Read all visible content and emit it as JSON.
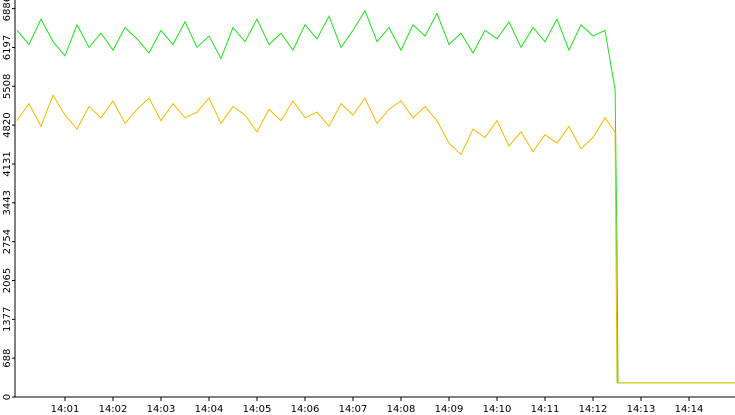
{
  "chart_data": {
    "type": "line",
    "x": [
      0,
      0.25,
      0.5,
      0.75,
      1,
      1.25,
      1.5,
      1.75,
      2,
      2.25,
      2.5,
      2.75,
      3,
      3.25,
      3.5,
      3.75,
      4,
      4.25,
      4.5,
      4.75,
      5,
      5.25,
      5.5,
      5.75,
      6,
      6.25,
      6.5,
      6.75,
      7,
      7.25,
      7.5,
      7.75,
      8,
      8.25,
      8.5,
      8.75,
      9,
      9.25,
      9.5,
      9.75,
      10,
      10.25,
      10.5,
      10.75,
      11,
      11.25,
      11.5,
      11.75,
      12,
      12.25,
      12.46,
      12.5,
      12.52,
      15
    ],
    "series": [
      {
        "color": "#22dd22",
        "values": [
          6500,
          6250,
          6700,
          6300,
          6050,
          6600,
          6200,
          6450,
          6150,
          6550,
          6350,
          6100,
          6500,
          6250,
          6650,
          6200,
          6400,
          6000,
          6550,
          6300,
          6700,
          6250,
          6450,
          6150,
          6600,
          6350,
          6750,
          6200,
          6500,
          6850,
          6300,
          6550,
          6150,
          6600,
          6400,
          6800,
          6250,
          6450,
          6100,
          6500,
          6350,
          6650,
          6200,
          6550,
          6300,
          6700,
          6150,
          6600,
          6400,
          6500,
          5450,
          2700,
          250,
          250
        ]
      },
      {
        "color": "#eebb00",
        "values": [
          4900,
          5200,
          4800,
          5350,
          5000,
          4750,
          5150,
          4950,
          5250,
          4850,
          5100,
          5300,
          4900,
          5200,
          4950,
          5050,
          5300,
          4850,
          5150,
          5000,
          4700,
          5100,
          4900,
          5250,
          4950,
          5050,
          4800,
          5200,
          5000,
          5300,
          4850,
          5100,
          5250,
          4950,
          5150,
          4900,
          4500,
          4300,
          4750,
          4600,
          4900,
          4450,
          4700,
          4350,
          4650,
          4500,
          4800,
          4400,
          4600,
          4950,
          4700,
          250,
          250,
          250
        ]
      }
    ],
    "xlim": [
      0,
      15
    ],
    "xticks": [
      {
        "value": 1,
        "label": "14:01"
      },
      {
        "value": 2,
        "label": "14:02"
      },
      {
        "value": 3,
        "label": "14:03"
      },
      {
        "value": 4,
        "label": "14:04"
      },
      {
        "value": 5,
        "label": "14:05"
      },
      {
        "value": 6,
        "label": "14:06"
      },
      {
        "value": 7,
        "label": "14:07"
      },
      {
        "value": 8,
        "label": "14:08"
      },
      {
        "value": 9,
        "label": "14:09"
      },
      {
        "value": 10,
        "label": "14:10"
      },
      {
        "value": 11,
        "label": "14:11"
      },
      {
        "value": 12,
        "label": "14:12"
      },
      {
        "value": 13,
        "label": "14:13"
      },
      {
        "value": 14,
        "label": "14:14"
      }
    ],
    "ylim": [
      0,
      6950
    ],
    "yticks": [
      0,
      688,
      1377,
      2065,
      2754,
      3443,
      4131,
      4820,
      5508,
      6197,
      6886
    ]
  }
}
